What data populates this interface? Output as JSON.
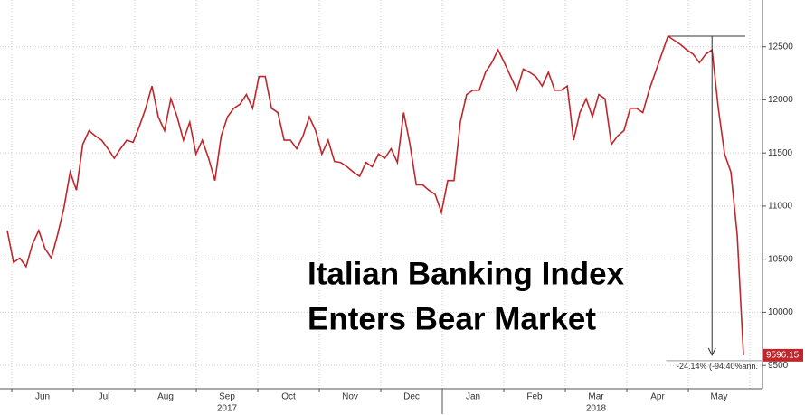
{
  "chart_data": {
    "type": "line",
    "annotations": [
      "Italian Banking Index",
      "Enters Bear Market"
    ],
    "change_label": "-24.14% (-94.40%ann.",
    "months": [
      "Jun",
      "Jul",
      "Aug",
      "Sep",
      "Oct",
      "Nov",
      "Dec",
      "Jan",
      "Feb",
      "Mar",
      "Apr",
      "May"
    ],
    "years": [
      "2017",
      "2018"
    ],
    "color": "#c0272d",
    "values": [
      10770,
      10470,
      10510,
      10430,
      10640,
      10770,
      10600,
      10510,
      10730,
      10980,
      11320,
      11150,
      11580,
      11710,
      11660,
      11620,
      11540,
      11450,
      11540,
      11620,
      11600,
      11750,
      11920,
      12130,
      11840,
      11710,
      12010,
      11840,
      11620,
      11790,
      11490,
      11620,
      11450,
      11240,
      11660,
      11840,
      11920,
      11960,
      12050,
      11920,
      12220,
      12220,
      11920,
      11880,
      11620,
      11620,
      11540,
      11660,
      11840,
      11710,
      11490,
      11620,
      11420,
      11410,
      11370,
      11320,
      11280,
      11410,
      11370,
      11490,
      11450,
      11540,
      11410,
      11880,
      11580,
      11200,
      11200,
      11150,
      11110,
      10940,
      11240,
      11240,
      11790,
      12050,
      12090,
      12090,
      12260,
      12350,
      12470,
      12350,
      12220,
      12090,
      12290,
      12260,
      12220,
      12130,
      12260,
      12090,
      12090,
      12130,
      11620,
      11880,
      12010,
      11840,
      12050,
      12010,
      11580,
      11660,
      11710,
      11920,
      11920,
      11880,
      12090,
      12260,
      12430,
      12600,
      12560,
      12520,
      12470,
      12430,
      12350,
      12430,
      12470,
      11920,
      11490,
      11320,
      10730,
      9596.15
    ],
    "ylim": [
      9280,
      12940
    ],
    "yticks": [
      9500,
      10000,
      10500,
      11000,
      11500,
      12000,
      12500
    ],
    "grid": true
  }
}
